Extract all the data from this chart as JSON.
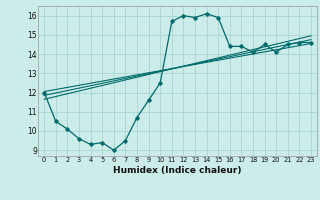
{
  "xlabel": "Humidex (Indice chaleur)",
  "bg_color": "#ccecea",
  "grid_color": "#aad4d0",
  "line_color": "#006b6b",
  "xlim": [
    -0.5,
    23.5
  ],
  "ylim": [
    8.7,
    16.5
  ],
  "yticks": [
    9,
    10,
    11,
    12,
    13,
    14,
    15,
    16
  ],
  "xticks": [
    0,
    1,
    2,
    3,
    4,
    5,
    6,
    7,
    8,
    9,
    10,
    11,
    12,
    13,
    14,
    15,
    16,
    17,
    18,
    19,
    20,
    21,
    22,
    23
  ],
  "series1_x": [
    0,
    1,
    2,
    3,
    4,
    5,
    6,
    7,
    8,
    9,
    10,
    11,
    12,
    13,
    14,
    15,
    16,
    17,
    18,
    19,
    20,
    21,
    22,
    23
  ],
  "series1_y": [
    12.0,
    10.5,
    10.1,
    9.6,
    9.3,
    9.4,
    9.0,
    9.5,
    10.7,
    11.6,
    12.5,
    15.7,
    16.0,
    15.9,
    16.1,
    15.9,
    14.4,
    14.4,
    14.1,
    14.5,
    14.1,
    14.5,
    14.6,
    14.6
  ],
  "regression_lines": [
    {
      "x_start": 0,
      "y_start": 12.05,
      "x_end": 23,
      "y_end": 14.55
    },
    {
      "x_start": 0,
      "y_start": 11.85,
      "x_end": 23,
      "y_end": 14.75
    },
    {
      "x_start": 0,
      "y_start": 11.65,
      "x_end": 23,
      "y_end": 14.95
    }
  ],
  "xlabel_fontsize": 6.5,
  "xlabel_fontweight": "bold",
  "tick_fontsize": 5.5,
  "xtick_fontsize": 4.8
}
